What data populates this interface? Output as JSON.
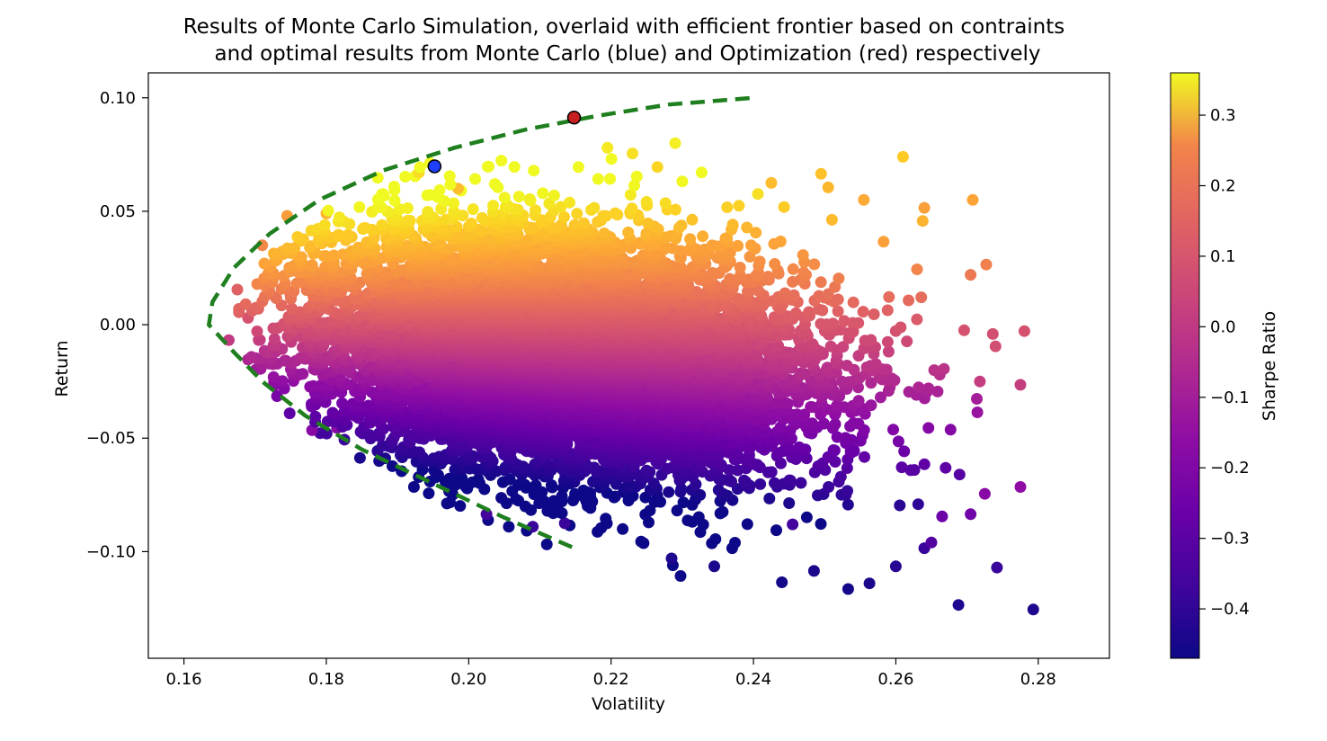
{
  "chart_data": {
    "type": "scatter",
    "title_line1": "Results of Monte Carlo Simulation, overlaid with efficient frontier based on contraints",
    "title_line2": "and optimal results from Monte Carlo (blue) and Optimization (red) respectively",
    "xlabel": "Volatility",
    "ylabel": "Return",
    "xlim": [
      0.155,
      0.29
    ],
    "ylim": [
      -0.147,
      0.111
    ],
    "x_ticks": [
      0.16,
      0.18,
      0.2,
      0.22,
      0.24,
      0.26,
      0.28
    ],
    "x_tick_labels": [
      "0.16",
      "0.18",
      "0.20",
      "0.22",
      "0.24",
      "0.26",
      "0.28"
    ],
    "y_ticks": [
      0.1,
      0.05,
      0.0,
      -0.05,
      -0.1
    ],
    "y_tick_labels": [
      "0.10",
      "0.05",
      "0.00",
      "−0.05",
      "−0.10"
    ],
    "colorbar": {
      "label": "Sharpe Ratio",
      "range": [
        -0.47,
        0.36
      ],
      "ticks": [
        0.3,
        0.2,
        0.1,
        0.0,
        -0.1,
        -0.2,
        -0.3,
        -0.4
      ],
      "tick_labels": [
        "0.3",
        "0.2",
        "0.1",
        "0.0",
        "−0.1",
        "−0.2",
        "−0.3",
        "−0.4"
      ],
      "colormap": "plasma"
    },
    "frontier": {
      "color": "#1f7f1f",
      "style": "dashed",
      "points": [
        [
          0.2145,
          -0.098
        ],
        [
          0.205,
          -0.085
        ],
        [
          0.195,
          -0.07
        ],
        [
          0.185,
          -0.055
        ],
        [
          0.177,
          -0.04
        ],
        [
          0.171,
          -0.025
        ],
        [
          0.167,
          -0.012
        ],
        [
          0.1635,
          0.0
        ],
        [
          0.164,
          0.01
        ],
        [
          0.167,
          0.025
        ],
        [
          0.172,
          0.04
        ],
        [
          0.179,
          0.055
        ],
        [
          0.188,
          0.068
        ],
        [
          0.198,
          0.078
        ],
        [
          0.208,
          0.086
        ],
        [
          0.218,
          0.092
        ],
        [
          0.228,
          0.097
        ],
        [
          0.24,
          0.1
        ]
      ]
    },
    "optimal_monte_carlo": {
      "x": 0.1952,
      "y": 0.0698,
      "color": "#1f3fff"
    },
    "optimal_optimization": {
      "x": 0.2148,
      "y": 0.0913,
      "color": "#c8201e"
    },
    "scatter_sample": [
      [
        0.1663,
        -0.0068,
        -0.09
      ],
      [
        0.1675,
        0.0155,
        0.02
      ],
      [
        0.169,
        0.003,
        -0.02
      ],
      [
        0.171,
        0.035,
        0.12
      ],
      [
        0.172,
        -0.012,
        -0.11
      ],
      [
        0.1745,
        0.048,
        0.17
      ],
      [
        0.178,
        -0.0465,
        -0.24
      ],
      [
        0.1815,
        -0.0455,
        -0.24
      ],
      [
        0.18,
        0.049,
        0.22
      ],
      [
        0.193,
        0.067,
        0.3
      ],
      [
        0.1985,
        0.06,
        0.24
      ],
      [
        0.2025,
        -0.0835,
        -0.38
      ],
      [
        0.209,
        -0.089,
        -0.4
      ],
      [
        0.2195,
        0.078,
        0.33
      ],
      [
        0.223,
        0.0755,
        0.31
      ],
      [
        0.229,
        0.08,
        0.34
      ],
      [
        0.2265,
        0.0695,
        0.29
      ],
      [
        0.2135,
        -0.0875,
        -0.4
      ],
      [
        0.2285,
        -0.103,
        -0.44
      ],
      [
        0.2345,
        -0.1065,
        -0.45
      ],
      [
        0.244,
        -0.1135,
        -0.46
      ],
      [
        0.2485,
        -0.1085,
        -0.45
      ],
      [
        0.2533,
        -0.1165,
        -0.46
      ],
      [
        0.2563,
        -0.114,
        -0.45
      ],
      [
        0.26,
        -0.1065,
        -0.43
      ],
      [
        0.264,
        -0.0985,
        -0.4
      ],
      [
        0.2688,
        -0.1235,
        -0.44
      ],
      [
        0.2742,
        -0.107,
        -0.4
      ],
      [
        0.2793,
        -0.1255,
        -0.44
      ],
      [
        0.261,
        0.074,
        0.27
      ],
      [
        0.264,
        0.0515,
        0.18
      ],
      [
        0.2708,
        0.055,
        0.19
      ],
      [
        0.2727,
        0.0265,
        0.1
      ],
      [
        0.2705,
        0.022,
        0.08
      ],
      [
        0.274,
        -0.0095,
        -0.03
      ],
      [
        0.2718,
        -0.025,
        -0.08
      ],
      [
        0.2775,
        -0.0265,
        -0.08
      ],
      [
        0.2775,
        -0.0715,
        -0.22
      ],
      [
        0.2725,
        -0.0745,
        -0.24
      ],
      [
        0.2705,
        -0.0835,
        -0.29
      ],
      [
        0.2665,
        -0.0845,
        -0.3
      ],
      [
        0.265,
        -0.096,
        -0.35
      ],
      [
        0.2555,
        0.055,
        0.2
      ],
      [
        0.2495,
        0.0665,
        0.25
      ],
      [
        0.2425,
        0.0625,
        0.24
      ],
      [
        0.2505,
        0.0605,
        0.23
      ],
      [
        0.2455,
        -0.088,
        -0.38
      ]
    ]
  }
}
